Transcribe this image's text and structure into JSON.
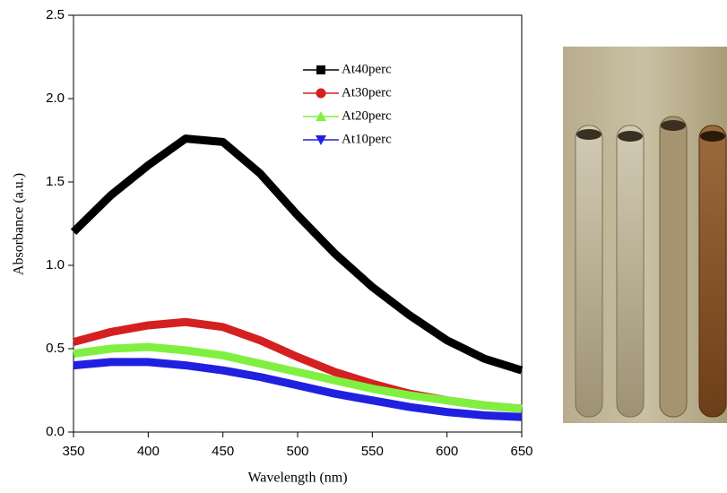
{
  "chart_data": {
    "type": "line",
    "xlabel": "Wavelength (nm)",
    "ylabel": "Absorbance (a.u.)",
    "x": [
      350,
      375,
      400,
      425,
      450,
      475,
      500,
      525,
      550,
      575,
      600,
      625,
      650
    ],
    "series": [
      {
        "name": "At40perc",
        "color": "#000000",
        "values": [
          1.2,
          1.42,
          1.6,
          1.76,
          1.74,
          1.55,
          1.3,
          1.07,
          0.87,
          0.7,
          0.55,
          0.44,
          0.37
        ]
      },
      {
        "name": "At30perc",
        "color": "#d42020",
        "values": [
          0.54,
          0.6,
          0.64,
          0.66,
          0.63,
          0.55,
          0.45,
          0.36,
          0.29,
          0.23,
          0.19,
          0.16,
          0.14
        ]
      },
      {
        "name": "At20perc",
        "color": "#80f040",
        "values": [
          0.47,
          0.5,
          0.51,
          0.49,
          0.46,
          0.41,
          0.36,
          0.31,
          0.26,
          0.22,
          0.19,
          0.16,
          0.14
        ]
      },
      {
        "name": "At10perc",
        "color": "#2020e0",
        "values": [
          0.4,
          0.42,
          0.42,
          0.4,
          0.37,
          0.33,
          0.28,
          0.23,
          0.19,
          0.15,
          0.12,
          0.1,
          0.09
        ]
      }
    ],
    "xlim": [
      350,
      650
    ],
    "xticks": [
      350,
      400,
      450,
      500,
      550,
      600,
      650
    ],
    "ylim": [
      0,
      2.5
    ],
    "yticks": [
      {
        "value": 0,
        "label": "0.0"
      },
      0.5,
      {
        "value": 1,
        "label": "1.0"
      },
      1.5,
      {
        "value": 2,
        "label": "2.0"
      },
      2.5
    ],
    "grid": false
  }
}
